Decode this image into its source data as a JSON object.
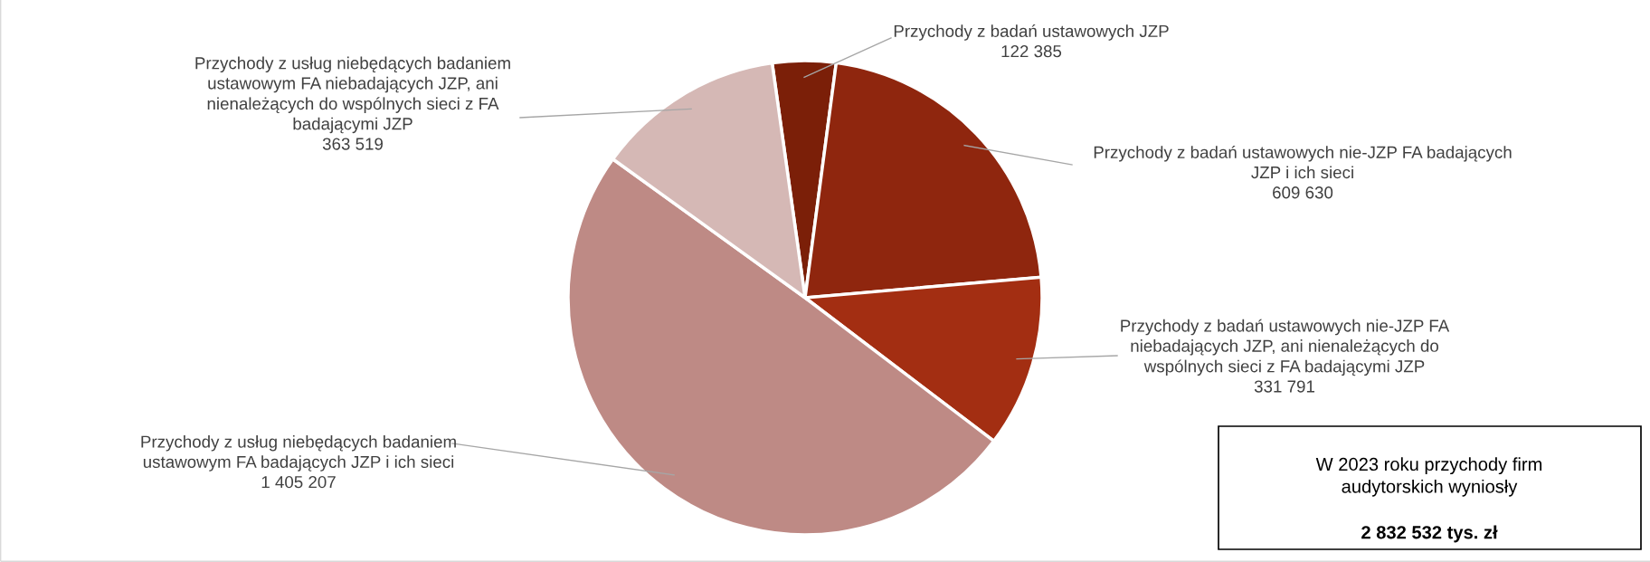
{
  "chart_data": {
    "type": "pie",
    "categories": [
      "Przychody z badań ustawowych JZP",
      "Przychody z badań ustawowych nie-JZP FA badających JZP i ich sieci",
      "Przychody z badań ustawowych nie-JZP FA niebadających JZP, ani nienależących do wspólnych sieci z FA badającymi JZP",
      "Przychody z usług niebędących badaniem ustawowym FA badających JZP i ich sieci",
      "Przychody z usług niebędących badaniem ustawowym FA niebadających JZP, ani nienależących do wspólnych sieci z FA badającymi JZP"
    ],
    "values": [
      122385,
      609630,
      331791,
      1405207,
      363519
    ],
    "value_labels": [
      "122 385",
      "609 630",
      "331 791",
      "1 405 207",
      "363 519"
    ],
    "colors": [
      "#7b1f08",
      "#8f260e",
      "#a32e12",
      "#be8a85",
      "#d5b8b5"
    ],
    "annotations": [
      "W 2023 roku przychody firm audytorskich wyniosły",
      "2 832 532 tys. zł"
    ],
    "legend": false
  }
}
